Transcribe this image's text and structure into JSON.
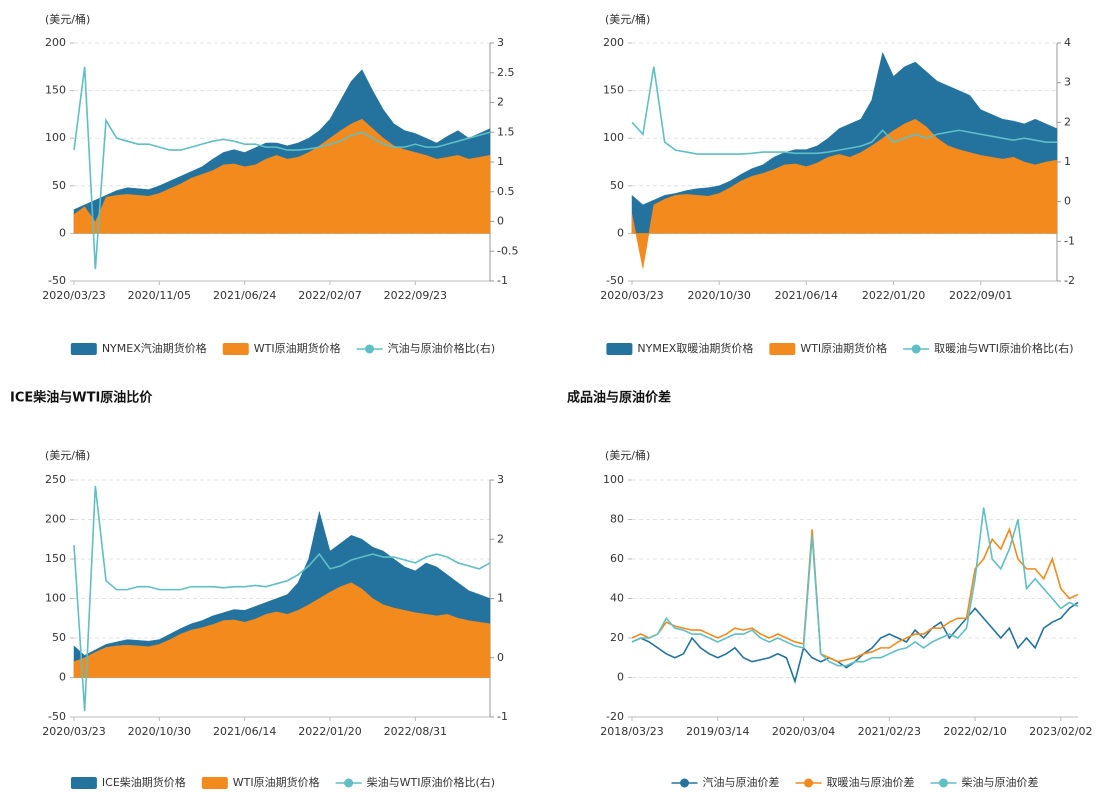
{
  "chart_data": [
    {
      "type": "combo",
      "unit": "(美元/桶)",
      "categories": [
        "2020/03/23",
        null,
        null,
        null,
        null,
        null,
        null,
        null,
        "2020/11/05",
        null,
        null,
        null,
        null,
        null,
        null,
        null,
        "2021/06/24",
        null,
        null,
        null,
        null,
        null,
        null,
        null,
        "2022/02/07",
        null,
        null,
        null,
        null,
        null,
        null,
        null,
        "2022/09/23",
        null,
        null,
        null,
        null,
        null,
        null,
        null
      ],
      "ylim": [
        -50,
        200
      ],
      "yticks": [
        -50,
        0,
        50,
        100,
        150,
        200
      ],
      "y2lim": [
        -1,
        3
      ],
      "y2ticks": [
        -1,
        -0.5,
        0,
        0.5,
        1,
        1.5,
        2,
        2.5,
        3
      ],
      "grid": true,
      "series": [
        {
          "name": "NYMEX汽油期货价格",
          "type": "area",
          "color": "#24739f",
          "values": [
            25,
            30,
            35,
            40,
            45,
            48,
            47,
            46,
            50,
            55,
            60,
            65,
            70,
            78,
            85,
            88,
            85,
            90,
            95,
            95,
            92,
            95,
            100,
            108,
            120,
            140,
            160,
            172,
            150,
            130,
            115,
            108,
            105,
            100,
            95,
            102,
            108,
            100,
            105,
            110
          ]
        },
        {
          "name": "WTI原油期货价格",
          "type": "area",
          "color": "#f28a1e",
          "values": [
            20,
            28,
            12,
            38,
            40,
            41,
            40,
            39,
            42,
            47,
            52,
            58,
            62,
            66,
            72,
            73,
            70,
            72,
            78,
            82,
            78,
            80,
            85,
            92,
            100,
            108,
            115,
            120,
            110,
            100,
            92,
            88,
            85,
            82,
            78,
            80,
            82,
            78,
            80,
            82
          ]
        },
        {
          "name": "汽油与原油价格比(右)",
          "type": "line",
          "axis": "y2",
          "color": "#5fbfc4",
          "values": [
            1.2,
            2.6,
            -0.8,
            1.7,
            1.4,
            1.35,
            1.3,
            1.3,
            1.25,
            1.2,
            1.2,
            1.25,
            1.3,
            1.35,
            1.38,
            1.35,
            1.3,
            1.3,
            1.25,
            1.25,
            1.2,
            1.2,
            1.22,
            1.25,
            1.3,
            1.35,
            1.45,
            1.5,
            1.4,
            1.3,
            1.25,
            1.25,
            1.3,
            1.25,
            1.25,
            1.3,
            1.35,
            1.4,
            1.45,
            1.5
          ]
        }
      ]
    },
    {
      "type": "combo",
      "unit": "(美元/桶)",
      "categories": [
        "2020/03/23",
        null,
        null,
        null,
        null,
        null,
        null,
        null,
        "2020/10/30",
        null,
        null,
        null,
        null,
        null,
        null,
        null,
        "2021/06/14",
        null,
        null,
        null,
        null,
        null,
        null,
        null,
        "2022/01/20",
        null,
        null,
        null,
        null,
        null,
        null,
        null,
        "2022/09/01",
        null,
        null,
        null,
        null,
        null,
        null,
        null
      ],
      "ylim": [
        -50,
        200
      ],
      "yticks": [
        -50,
        0,
        50,
        100,
        150,
        200
      ],
      "y2lim": [
        -2,
        4
      ],
      "y2ticks": [
        -2,
        -1,
        0,
        1,
        2,
        3,
        4
      ],
      "grid": true,
      "series": [
        {
          "name": "NYMEX取暖油期货价格",
          "type": "area",
          "color": "#24739f",
          "values": [
            40,
            30,
            35,
            40,
            42,
            45,
            47,
            48,
            50,
            55,
            62,
            68,
            72,
            80,
            85,
            88,
            88,
            92,
            100,
            110,
            115,
            120,
            140,
            190,
            165,
            175,
            180,
            170,
            160,
            155,
            150,
            145,
            130,
            125,
            120,
            118,
            115,
            120,
            115,
            110
          ]
        },
        {
          "name": "WTI原油期货价格",
          "type": "area",
          "color": "#f28a1e",
          "values": [
            20,
            -37,
            30,
            36,
            40,
            41,
            40,
            39,
            42,
            48,
            55,
            60,
            63,
            67,
            72,
            73,
            70,
            74,
            80,
            83,
            80,
            85,
            92,
            100,
            108,
            115,
            120,
            112,
            100,
            92,
            88,
            85,
            82,
            80,
            78,
            80,
            75,
            72,
            75,
            77
          ]
        },
        {
          "name": "取暖油与WTI原油价格比(右)",
          "type": "line",
          "axis": "y2",
          "color": "#5fbfc4",
          "values": [
            2.0,
            1.7,
            3.4,
            1.5,
            1.3,
            1.25,
            1.2,
            1.2,
            1.2,
            1.2,
            1.2,
            1.22,
            1.25,
            1.25,
            1.25,
            1.22,
            1.22,
            1.22,
            1.25,
            1.3,
            1.35,
            1.4,
            1.5,
            1.8,
            1.5,
            1.6,
            1.7,
            1.6,
            1.7,
            1.75,
            1.8,
            1.75,
            1.7,
            1.65,
            1.6,
            1.55,
            1.6,
            1.55,
            1.5,
            1.5
          ]
        }
      ]
    },
    {
      "type": "combo",
      "title": "ICE柴油与WTI原油比价",
      "unit": "(美元/桶)",
      "categories": [
        "2020/03/23",
        null,
        null,
        null,
        null,
        null,
        null,
        null,
        "2020/10/30",
        null,
        null,
        null,
        null,
        null,
        null,
        null,
        "2021/06/14",
        null,
        null,
        null,
        null,
        null,
        null,
        null,
        "2022/01/20",
        null,
        null,
        null,
        null,
        null,
        null,
        null,
        "2022/08/31",
        null,
        null,
        null,
        null,
        null,
        null,
        null
      ],
      "ylim": [
        -50,
        250
      ],
      "yticks": [
        -50,
        0,
        50,
        100,
        150,
        200,
        250
      ],
      "y2lim": [
        -1,
        3
      ],
      "y2ticks": [
        -1,
        0,
        1,
        2,
        3
      ],
      "grid": true,
      "series": [
        {
          "name": "ICE柴油期货价格",
          "type": "area",
          "color": "#24739f",
          "values": [
            40,
            28,
            35,
            42,
            45,
            48,
            47,
            46,
            48,
            55,
            62,
            68,
            72,
            78,
            82,
            86,
            85,
            90,
            95,
            100,
            105,
            120,
            150,
            210,
            160,
            170,
            180,
            175,
            165,
            160,
            150,
            140,
            135,
            145,
            140,
            130,
            120,
            110,
            105,
            100
          ]
        },
        {
          "name": "WTI原油期货价格",
          "type": "area",
          "color": "#f28a1e",
          "values": [
            20,
            25,
            32,
            38,
            40,
            41,
            40,
            39,
            42,
            48,
            55,
            60,
            63,
            67,
            72,
            73,
            70,
            74,
            80,
            83,
            80,
            85,
            92,
            100,
            108,
            115,
            120,
            112,
            100,
            92,
            88,
            85,
            82,
            80,
            78,
            80,
            75,
            72,
            70,
            68
          ]
        },
        {
          "name": "柴油与WTI原油价格比(右)",
          "type": "line",
          "axis": "y2",
          "color": "#5fbfc4",
          "values": [
            1.9,
            -0.9,
            2.9,
            1.3,
            1.15,
            1.15,
            1.2,
            1.2,
            1.15,
            1.15,
            1.15,
            1.2,
            1.2,
            1.2,
            1.18,
            1.2,
            1.2,
            1.22,
            1.2,
            1.25,
            1.3,
            1.4,
            1.55,
            1.75,
            1.5,
            1.55,
            1.65,
            1.7,
            1.75,
            1.7,
            1.7,
            1.65,
            1.6,
            1.7,
            1.75,
            1.7,
            1.6,
            1.55,
            1.5,
            1.6
          ]
        }
      ]
    },
    {
      "type": "line",
      "title": "成品油与原油价差",
      "unit": "(美元/桶)",
      "categories": [
        "2018/03/23",
        null,
        null,
        null,
        null,
        null,
        null,
        null,
        null,
        null,
        "2019/03/14",
        null,
        null,
        null,
        null,
        null,
        null,
        null,
        null,
        null,
        "2020/03/04",
        null,
        null,
        null,
        null,
        null,
        null,
        null,
        null,
        null,
        "2021/02/23",
        null,
        null,
        null,
        null,
        null,
        null,
        null,
        null,
        null,
        "2022/02/10",
        null,
        null,
        null,
        null,
        null,
        null,
        null,
        null,
        null,
        "2023/02/02",
        null,
        null
      ],
      "ylim": [
        -20,
        100
      ],
      "yticks": [
        -20,
        0,
        20,
        40,
        60,
        80,
        100
      ],
      "grid": true,
      "series": [
        {
          "name": "汽油与原油价差",
          "type": "line",
          "color": "#24739f",
          "values": [
            18,
            20,
            18,
            15,
            12,
            10,
            12,
            20,
            15,
            12,
            10,
            12,
            15,
            10,
            8,
            9,
            10,
            12,
            10,
            -2,
            15,
            10,
            8,
            10,
            8,
            5,
            8,
            12,
            15,
            20,
            22,
            20,
            18,
            24,
            20,
            25,
            28,
            20,
            25,
            30,
            35,
            30,
            25,
            20,
            25,
            15,
            20,
            15,
            25,
            28,
            30,
            35,
            38
          ]
        },
        {
          "name": "取暖油与原油价差",
          "type": "line",
          "color": "#f28a1e",
          "values": [
            20,
            22,
            20,
            22,
            28,
            26,
            25,
            24,
            24,
            22,
            20,
            22,
            25,
            24,
            25,
            22,
            20,
            22,
            20,
            18,
            17,
            75,
            12,
            10,
            8,
            9,
            10,
            12,
            13,
            15,
            15,
            18,
            20,
            22,
            22,
            25,
            25,
            28,
            30,
            30,
            55,
            60,
            70,
            65,
            75,
            60,
            55,
            55,
            50,
            60,
            45,
            40,
            42
          ]
        },
        {
          "name": "柴油与原油价差",
          "type": "line",
          "color": "#5fbfc4",
          "values": [
            18,
            20,
            20,
            22,
            30,
            25,
            24,
            22,
            22,
            20,
            18,
            20,
            22,
            22,
            24,
            20,
            18,
            20,
            18,
            16,
            15,
            72,
            12,
            8,
            6,
            6,
            8,
            8,
            10,
            10,
            12,
            14,
            15,
            18,
            15,
            18,
            20,
            22,
            20,
            25,
            50,
            86,
            60,
            55,
            65,
            80,
            45,
            50,
            45,
            40,
            35,
            38,
            36
          ]
        }
      ]
    }
  ]
}
